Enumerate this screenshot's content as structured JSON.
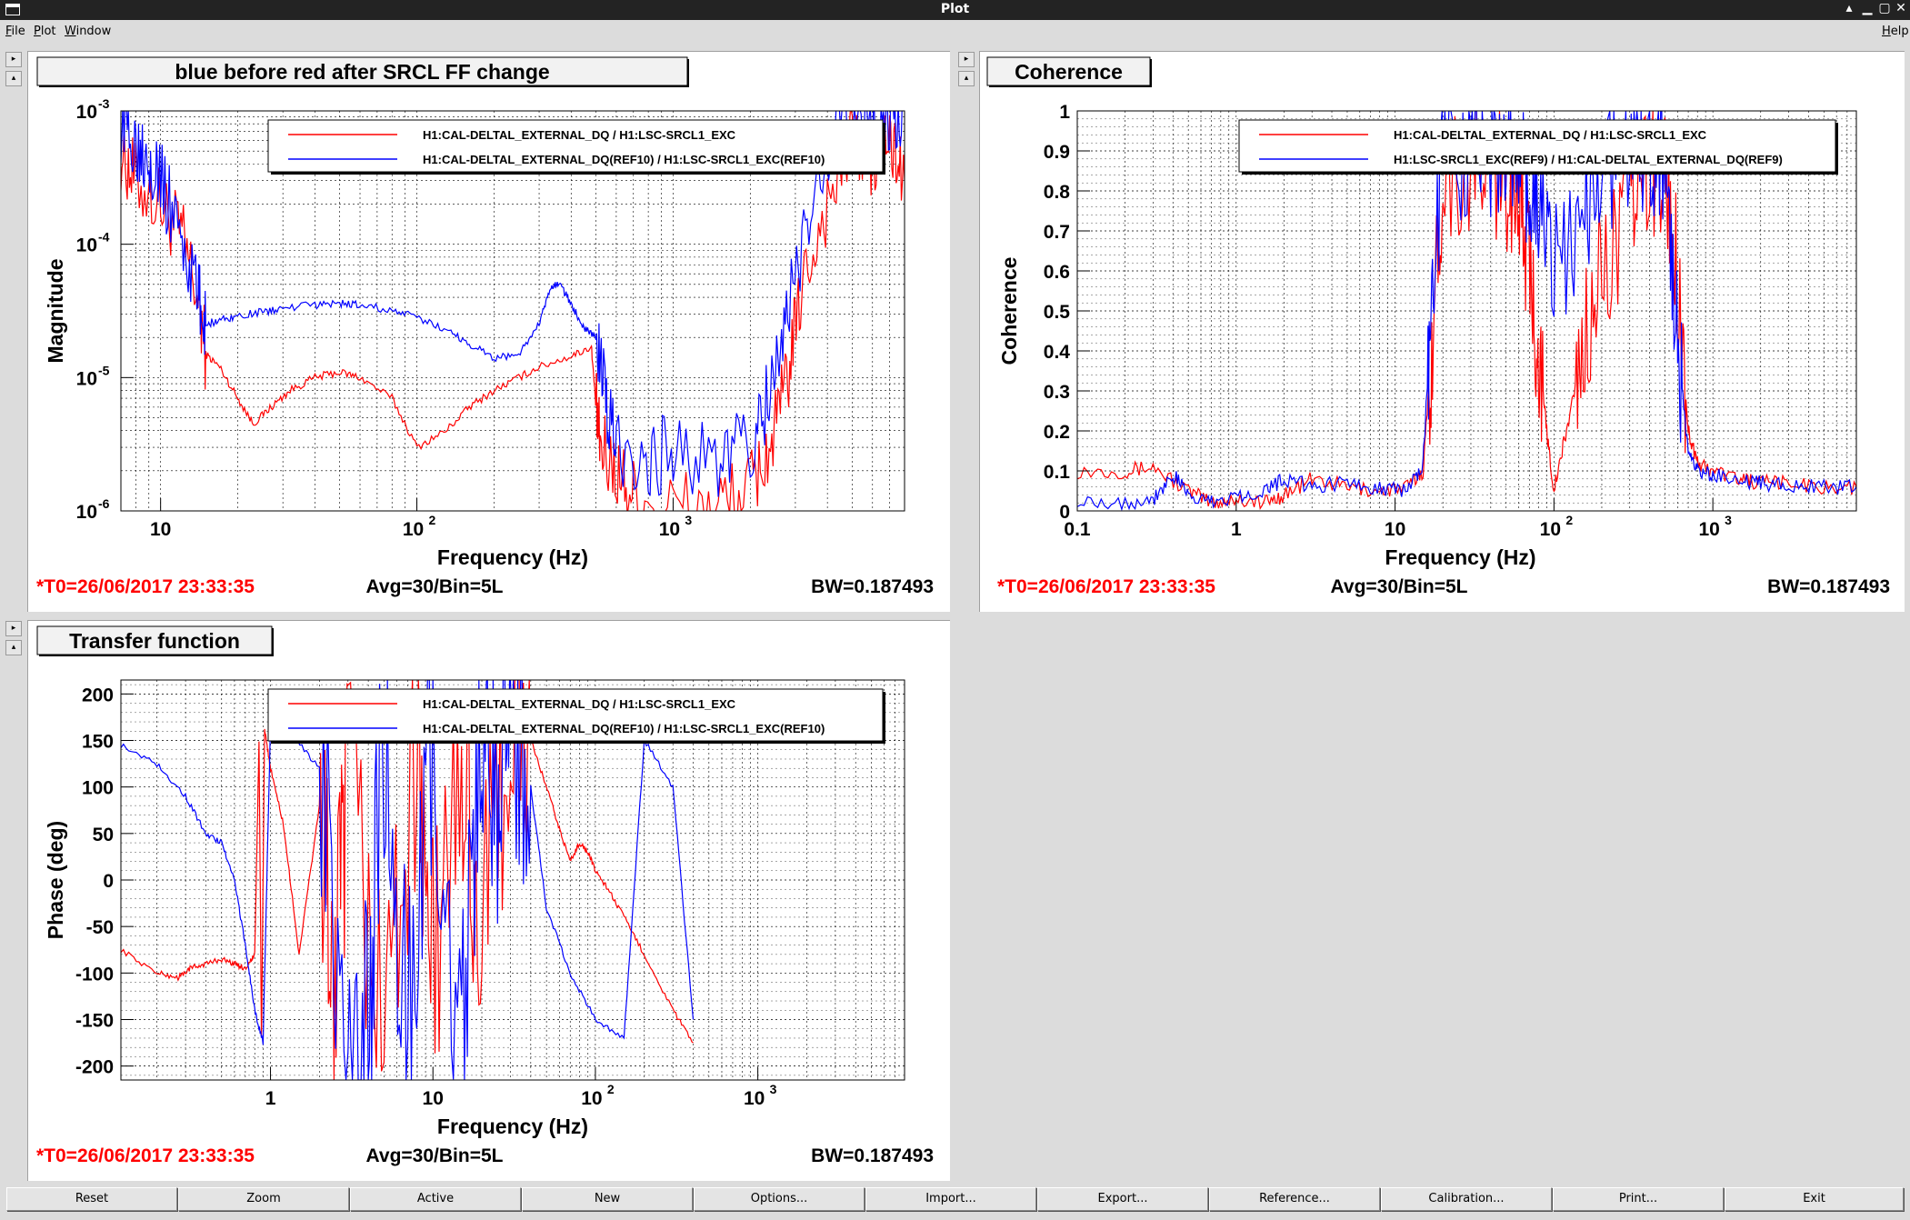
{
  "window": {
    "title": "Plot"
  },
  "menu": [
    {
      "label": "File",
      "u": "F",
      "rest": "ile"
    },
    {
      "label": "Plot",
      "u": "P",
      "rest": "lot"
    },
    {
      "label": "Window",
      "u": "W",
      "rest": "indow"
    }
  ],
  "help": {
    "label": "Help",
    "u": "H",
    "rest": "elp"
  },
  "bottom_buttons": [
    "Reset",
    "Zoom",
    "Active",
    "New",
    "Options...",
    "Import...",
    "Export...",
    "Reference...",
    "Calibration...",
    "Print...",
    "Exit"
  ],
  "colors": {
    "red": "#ff0000",
    "blue": "#0000ff"
  },
  "chart_data": [
    {
      "type": "line",
      "title": "blue before red after SRCL FF change",
      "xlabel": "Frequency (Hz)",
      "ylabel": "Magnitude",
      "xscale": "log",
      "yscale": "log",
      "xlim": [
        7,
        8000
      ],
      "ylim": [
        1e-06,
        0.001
      ],
      "grid": true,
      "legend": "top-right",
      "legend_entries": [
        "H1:CAL-DELTAL_EXTERNAL_DQ / H1:LSC-SRCL1_EXC",
        "H1:CAL-DELTAL_EXTERNAL_DQ(REF10) / H1:LSC-SRCL1_EXC(REF10)"
      ],
      "series": [
        {
          "name": "H1:CAL-DELTAL_EXTERNAL_DQ / H1:LSC-SRCL1_EXC",
          "color": "#ff0000",
          "x": [
            7,
            8,
            10,
            12,
            14,
            15,
            17,
            20,
            23,
            27,
            32,
            40,
            50,
            60,
            80,
            100,
            130,
            160,
            200,
            250,
            300,
            400,
            480,
            500,
            520,
            600,
            700,
            1000,
            1500,
            2000,
            2400,
            2800,
            3200,
            4000,
            5000,
            6000,
            7000,
            8000
          ],
          "y": [
            0.0005,
            0.0003,
            0.0002,
            0.00012,
            4e-05,
            1.5e-05,
            1.2e-05,
            7e-06,
            4.5e-06,
            6e-06,
            8e-06,
            1e-05,
            1.1e-05,
            1e-05,
            7e-06,
            3e-06,
            4e-06,
            6e-06,
            8e-06,
            1e-05,
            1.2e-05,
            1.45e-05,
            1.7e-05,
            6e-06,
            3e-06,
            2e-06,
            1.3e-06,
            1.1e-06,
            1.1e-06,
            1.5e-06,
            3e-06,
            1e-05,
            5e-05,
            0.0002,
            0.0006,
            0.0004,
            0.0006,
            0.0003
          ]
        },
        {
          "name": "H1:CAL-DELTAL_EXTERNAL_DQ(REF10) / H1:LSC-SRCL1_EXC(REF10)",
          "color": "#0000ff",
          "x": [
            7,
            8,
            9,
            10,
            12,
            14,
            15,
            17,
            20,
            25,
            30,
            40,
            50,
            60,
            80,
            100,
            130,
            160,
            200,
            250,
            300,
            330,
            360,
            400,
            450,
            500,
            550,
            600,
            800,
            1000,
            1500,
            2000,
            2400,
            2800,
            3500,
            4500,
            6000,
            7000,
            8000
          ],
          "y": [
            0.0008,
            0.0006,
            0.0005,
            0.0003,
            0.00012,
            4e-05,
            2.5e-05,
            2.7e-05,
            2.9e-05,
            3.1e-05,
            3.3e-05,
            3.5e-05,
            3.6e-05,
            3.5e-05,
            3.2e-05,
            2.8e-05,
            2.3e-05,
            1.8e-05,
            1.4e-05,
            1.5e-05,
            2.5e-05,
            4.5e-05,
            5.2e-05,
            3.5e-05,
            2.4e-05,
            2e-05,
            6e-06,
            3e-06,
            2.5e-06,
            2.7e-06,
            2.5e-06,
            3e-06,
            8e-06,
            3e-05,
            0.0002,
            0.0008,
            0.0009,
            0.0008,
            0.001
          ]
        }
      ],
      "footer": {
        "t0": "*T0=26/06/2017 23:33:35",
        "avg": "Avg=30/Bin=5L",
        "bw": "BW=0.187493"
      }
    },
    {
      "type": "line",
      "title": "Coherence",
      "xlabel": "Frequency (Hz)",
      "ylabel": "Coherence",
      "xscale": "log",
      "yscale": "linear",
      "xlim": [
        0.1,
        8000
      ],
      "ylim": [
        0,
        1
      ],
      "grid": true,
      "legend": "top-right",
      "legend_entries": [
        "H1:CAL-DELTAL_EXTERNAL_DQ / H1:LSC-SRCL1_EXC",
        "H1:LSC-SRCL1_EXC(REF9) / H1:CAL-DELTAL_EXTERNAL_DQ(REF9)"
      ],
      "series": [
        {
          "name": "H1:CAL-DELTAL_EXTERNAL_DQ / H1:LSC-SRCL1_EXC",
          "color": "#ff0000",
          "x": [
            0.1,
            0.2,
            0.3,
            0.5,
            0.7,
            1,
            1.5,
            2,
            3,
            5,
            8,
            12,
            15,
            17,
            20,
            30,
            40,
            50,
            60,
            70,
            80,
            90,
            100,
            120,
            150,
            200,
            300,
            400,
            500,
            600,
            700,
            800,
            1000,
            1500,
            2000,
            3000,
            5000,
            8000
          ],
          "y": [
            0.1,
            0.1,
            0.11,
            0.05,
            0.02,
            0.03,
            0.02,
            0.04,
            0.08,
            0.06,
            0.05,
            0.06,
            0.1,
            0.4,
            0.85,
            0.85,
            0.85,
            0.82,
            0.8,
            0.6,
            0.4,
            0.2,
            0.05,
            0.2,
            0.4,
            0.6,
            0.75,
            0.85,
            0.85,
            0.6,
            0.2,
            0.12,
            0.1,
            0.08,
            0.07,
            0.07,
            0.06,
            0.06
          ]
        },
        {
          "name": "H1:LSC-SRCL1_EXC(REF9) / H1:CAL-DELTAL_EXTERNAL_DQ(REF9)",
          "color": "#0000ff",
          "x": [
            0.1,
            0.2,
            0.3,
            0.4,
            0.5,
            0.7,
            1,
            1.5,
            2,
            3,
            5,
            8,
            12,
            15,
            17,
            20,
            30,
            40,
            50,
            60,
            70,
            80,
            100,
            150,
            200,
            300,
            400,
            500,
            600,
            700,
            800,
            1000,
            1500,
            2000,
            3000,
            5000,
            8000
          ],
          "y": [
            0.03,
            0.02,
            0.03,
            0.09,
            0.04,
            0.02,
            0.04,
            0.05,
            0.08,
            0.06,
            0.07,
            0.06,
            0.05,
            0.12,
            0.5,
            0.9,
            0.9,
            0.9,
            0.88,
            0.85,
            0.8,
            0.75,
            0.6,
            0.75,
            0.85,
            0.9,
            0.9,
            0.88,
            0.4,
            0.15,
            0.1,
            0.09,
            0.07,
            0.07,
            0.06,
            0.06,
            0.06
          ]
        }
      ],
      "footer": {
        "t0": "*T0=26/06/2017 23:33:35",
        "avg": "Avg=30/Bin=5L",
        "bw": "BW=0.187493"
      }
    },
    {
      "type": "line",
      "title": "Transfer function",
      "xlabel": "Frequency (Hz)",
      "ylabel": "Phase (deg)",
      "xscale": "log",
      "yscale": "linear",
      "xlim": [
        0.12,
        8000
      ],
      "ylim": [
        -215,
        215
      ],
      "grid": true,
      "legend": "top-right",
      "legend_entries": [
        "H1:CAL-DELTAL_EXTERNAL_DQ / H1:LSC-SRCL1_EXC",
        "H1:CAL-DELTAL_EXTERNAL_DQ(REF10) / H1:LSC-SRCL1_EXC(REF10)"
      ],
      "series": [
        {
          "name": "H1:CAL-DELTAL_EXTERNAL_DQ / H1:LSC-SRCL1_EXC",
          "color": "#ff0000",
          "x": [
            0.12,
            0.2,
            0.27,
            0.32,
            0.4,
            0.5,
            0.6,
            0.7,
            0.8,
            0.85,
            0.88,
            0.92,
            1.0,
            1.2,
            1.5,
            2.0,
            2.5,
            3,
            5,
            8,
            10,
            15,
            20,
            30,
            40,
            50,
            60,
            70,
            80,
            90,
            100,
            120,
            150,
            200,
            300,
            400
          ],
          "y": [
            -75,
            -100,
            -105,
            -95,
            -90,
            -85,
            -90,
            -95,
            -80,
            150,
            -170,
            160,
            120,
            60,
            -80,
            80,
            -120,
            100,
            -150,
            150,
            -100,
            120,
            -60,
            170,
            150,
            100,
            55,
            20,
            40,
            30,
            10,
            -10,
            -40,
            -80,
            -140,
            -175
          ]
        },
        {
          "name": "H1:CAL-DELTAL_EXTERNAL_DQ(REF10) / H1:LSC-SRCL1_EXC(REF10)",
          "color": "#0000ff",
          "x": [
            0.12,
            0.2,
            0.3,
            0.4,
            0.5,
            0.6,
            0.7,
            0.8,
            0.9,
            1.0,
            1.3,
            2,
            3,
            4,
            5,
            7,
            10,
            15,
            20,
            25,
            30,
            40,
            50,
            70,
            100,
            150,
            200,
            300,
            400
          ],
          "y": [
            145,
            125,
            90,
            50,
            40,
            0,
            -70,
            -140,
            -175,
            170,
            160,
            120,
            -150,
            -160,
            160,
            -150,
            140,
            -170,
            150,
            100,
            170,
            100,
            -30,
            -100,
            -150,
            -170,
            150,
            100,
            -150
          ]
        }
      ],
      "footer": {
        "t0": "*T0=26/06/2017 23:33:35",
        "avg": "Avg=30/Bin=5L",
        "bw": "BW=0.187493"
      }
    }
  ]
}
